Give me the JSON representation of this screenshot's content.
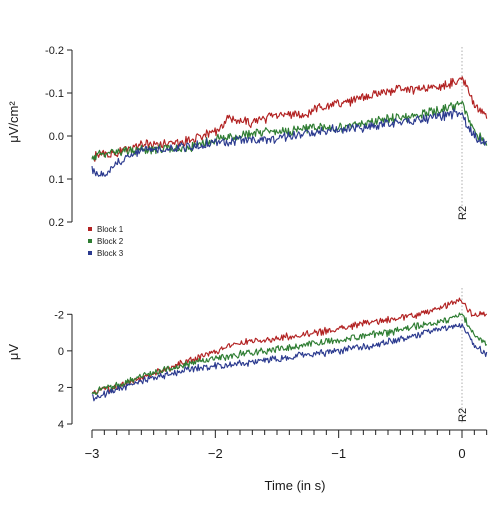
{
  "chart_data": [
    {
      "type": "line",
      "id": "top",
      "ylabel": "μV/cm²",
      "ylim": [
        0.2,
        -0.2
      ],
      "yticks": [
        "-0.2",
        "-0.1",
        "0.0",
        "0.1",
        "0.2"
      ],
      "ytick_values": [
        -0.2,
        -0.1,
        0.0,
        0.1,
        0.2
      ],
      "xlim": [
        -3,
        0.2
      ],
      "marker": {
        "x": 0,
        "label": "R2"
      },
      "series": [
        {
          "name": "Block 1",
          "color": "#b22222",
          "points": [
            [
              -3,
              0.05
            ],
            [
              -2.8,
              0.04
            ],
            [
              -2.6,
              0.02
            ],
            [
              -2.4,
              0.02
            ],
            [
              -2.2,
              0.01
            ],
            [
              -2.0,
              -0.01
            ],
            [
              -1.9,
              -0.04
            ],
            [
              -1.7,
              -0.03
            ],
            [
              -1.5,
              -0.05
            ],
            [
              -1.3,
              -0.05
            ],
            [
              -1.1,
              -0.07
            ],
            [
              -0.9,
              -0.08
            ],
            [
              -0.7,
              -0.1
            ],
            [
              -0.5,
              -0.11
            ],
            [
              -0.3,
              -0.11
            ],
            [
              -0.1,
              -0.12
            ],
            [
              0.0,
              -0.135
            ],
            [
              0.05,
              -0.11
            ],
            [
              0.1,
              -0.07
            ],
            [
              0.2,
              -0.045
            ]
          ]
        },
        {
          "name": "Block 2",
          "color": "#2e7d32",
          "points": [
            [
              -3,
              0.05
            ],
            [
              -2.8,
              0.035
            ],
            [
              -2.6,
              0.03
            ],
            [
              -2.4,
              0.03
            ],
            [
              -2.2,
              0.025
            ],
            [
              -2.0,
              0.01
            ],
            [
              -1.8,
              0.0
            ],
            [
              -1.6,
              -0.01
            ],
            [
              -1.4,
              -0.01
            ],
            [
              -1.2,
              -0.02
            ],
            [
              -1.0,
              -0.02
            ],
            [
              -0.8,
              -0.03
            ],
            [
              -0.6,
              -0.04
            ],
            [
              -0.4,
              -0.045
            ],
            [
              -0.2,
              -0.06
            ],
            [
              0.0,
              -0.075
            ],
            [
              0.05,
              -0.04
            ],
            [
              0.1,
              -0.01
            ],
            [
              0.2,
              0.02
            ]
          ]
        },
        {
          "name": "Block 3",
          "color": "#2b3a8f",
          "points": [
            [
              -3,
              0.08
            ],
            [
              -2.9,
              0.09
            ],
            [
              -2.8,
              0.065
            ],
            [
              -2.6,
              0.03
            ],
            [
              -2.4,
              0.03
            ],
            [
              -2.2,
              0.025
            ],
            [
              -2.0,
              0.015
            ],
            [
              -1.8,
              0.01
            ],
            [
              -1.6,
              0.01
            ],
            [
              -1.4,
              0.0
            ],
            [
              -1.2,
              -0.01
            ],
            [
              -1.0,
              -0.015
            ],
            [
              -0.8,
              -0.02
            ],
            [
              -0.6,
              -0.03
            ],
            [
              -0.4,
              -0.035
            ],
            [
              -0.2,
              -0.045
            ],
            [
              0.0,
              -0.055
            ],
            [
              0.05,
              -0.02
            ],
            [
              0.1,
              0.0
            ],
            [
              0.2,
              0.02
            ]
          ]
        }
      ]
    },
    {
      "type": "line",
      "id": "bottom",
      "ylabel": "μV",
      "ylim": [
        4,
        -3
      ],
      "yticks": [
        "-2",
        "0",
        "2",
        "4"
      ],
      "ytick_values": [
        -2,
        0,
        2,
        4
      ],
      "xlabel": "Time (in s)",
      "xticks": [
        "-3",
        "-2",
        "-1",
        "0"
      ],
      "xtick_values": [
        -3,
        -2,
        -1,
        0
      ],
      "xlim": [
        -3,
        0.2
      ],
      "marker": {
        "x": 0,
        "label": "R2"
      },
      "series": [
        {
          "name": "Block 1",
          "color": "#b22222",
          "points": [
            [
              -3,
              2.3
            ],
            [
              -2.8,
              2.0
            ],
            [
              -2.6,
              1.5
            ],
            [
              -2.4,
              1.0
            ],
            [
              -2.2,
              0.5
            ],
            [
              -2.0,
              0.0
            ],
            [
              -1.8,
              -0.4
            ],
            [
              -1.6,
              -0.6
            ],
            [
              -1.4,
              -0.8
            ],
            [
              -1.2,
              -1.0
            ],
            [
              -1.0,
              -1.2
            ],
            [
              -0.8,
              -1.5
            ],
            [
              -0.6,
              -1.7
            ],
            [
              -0.4,
              -1.9
            ],
            [
              -0.2,
              -2.3
            ],
            [
              0.0,
              -2.8
            ],
            [
              0.05,
              -2.2
            ],
            [
              0.1,
              -1.9
            ],
            [
              0.2,
              -2.1
            ]
          ]
        },
        {
          "name": "Block 2",
          "color": "#2e7d32",
          "points": [
            [
              -3,
              2.3
            ],
            [
              -2.8,
              1.9
            ],
            [
              -2.6,
              1.4
            ],
            [
              -2.4,
              1.0
            ],
            [
              -2.2,
              0.7
            ],
            [
              -2.0,
              0.4
            ],
            [
              -1.8,
              0.2
            ],
            [
              -1.6,
              0.0
            ],
            [
              -1.4,
              -0.2
            ],
            [
              -1.2,
              -0.4
            ],
            [
              -1.0,
              -0.6
            ],
            [
              -0.8,
              -0.8
            ],
            [
              -0.6,
              -1.0
            ],
            [
              -0.4,
              -1.3
            ],
            [
              -0.2,
              -1.5
            ],
            [
              0.0,
              -2.0
            ],
            [
              0.05,
              -1.4
            ],
            [
              0.1,
              -0.8
            ],
            [
              0.2,
              -0.4
            ]
          ]
        },
        {
          "name": "Block 3",
          "color": "#2b3a8f",
          "points": [
            [
              -3,
              2.6
            ],
            [
              -2.8,
              2.1
            ],
            [
              -2.6,
              1.6
            ],
            [
              -2.4,
              1.3
            ],
            [
              -2.2,
              1.0
            ],
            [
              -2.0,
              0.8
            ],
            [
              -1.8,
              0.7
            ],
            [
              -1.6,
              0.5
            ],
            [
              -1.4,
              0.3
            ],
            [
              -1.2,
              0.2
            ],
            [
              -1.0,
              0.0
            ],
            [
              -0.8,
              -0.2
            ],
            [
              -0.6,
              -0.5
            ],
            [
              -0.4,
              -0.8
            ],
            [
              -0.2,
              -1.2
            ],
            [
              0.0,
              -1.4
            ],
            [
              0.05,
              -0.9
            ],
            [
              0.1,
              -0.3
            ],
            [
              0.2,
              0.2
            ]
          ]
        }
      ]
    }
  ],
  "legend": [
    {
      "label": "Block 1",
      "color": "#b22222"
    },
    {
      "label": "Block 2",
      "color": "#2e7d32"
    },
    {
      "label": "Block 3",
      "color": "#2b3a8f"
    }
  ]
}
